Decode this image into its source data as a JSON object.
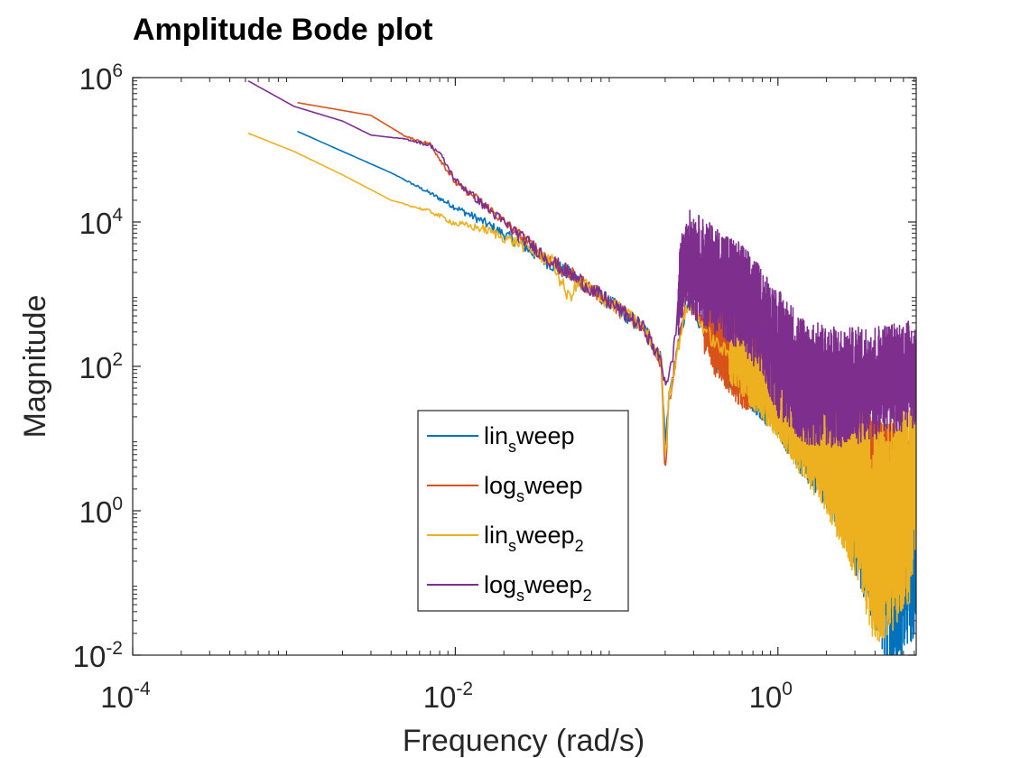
{
  "chart_data": {
    "type": "line",
    "title": "Amplitude Bode plot",
    "xlabel": "Frequency (rad/s)",
    "ylabel": "Magnitude",
    "xscale": "log",
    "yscale": "log",
    "xlim": [
      0.0001,
      7.2
    ],
    "ylim": [
      0.01,
      1000000
    ],
    "x_ticks": [
      {
        "value": 0.0001,
        "base": "10",
        "exp": "-4"
      },
      {
        "value": 0.01,
        "base": "10",
        "exp": "-2"
      },
      {
        "value": 1,
        "base": "10",
        "exp": "0"
      }
    ],
    "y_ticks": [
      {
        "value": 0.01,
        "base": "10",
        "exp": "-2"
      },
      {
        "value": 1,
        "base": "10",
        "exp": "0"
      },
      {
        "value": 100,
        "base": "10",
        "exp": "2"
      },
      {
        "value": 10000,
        "base": "10",
        "exp": "4"
      },
      {
        "value": 1000000,
        "base": "10",
        "exp": "6"
      }
    ],
    "legend_position": "center-bottom",
    "series": [
      {
        "name": "lin_sweep",
        "name_main": "lin",
        "name_sub": "s",
        "name_rest": "weep",
        "name_sub2": "",
        "color": "#0072BD",
        "noisy_from": 0.4,
        "points": [
          [
            0.00105,
            180000
          ],
          [
            0.002,
            95000
          ],
          [
            0.004,
            48000
          ],
          [
            0.007,
            25000
          ],
          [
            0.01,
            16000
          ],
          [
            0.015,
            10000
          ],
          [
            0.025,
            5000
          ],
          [
            0.04,
            2600
          ],
          [
            0.06,
            1500
          ],
          [
            0.1,
            650
          ],
          [
            0.15,
            330
          ],
          [
            0.19,
            120
          ],
          [
            0.2,
            8
          ],
          [
            0.21,
            35
          ],
          [
            0.25,
            300
          ],
          [
            0.28,
            800
          ],
          [
            0.32,
            450
          ],
          [
            0.4,
            210
          ],
          [
            0.6,
            90
          ],
          [
            1,
            28
          ],
          [
            1.5,
            9
          ],
          [
            2.5,
            3
          ],
          [
            3.2,
            1.2
          ],
          [
            4.2,
            0.4
          ],
          [
            5,
            0.15
          ],
          [
            6,
            0.3
          ],
          [
            7.2,
            0.6
          ]
        ],
        "spread": [
          [
            0.4,
            1.3
          ],
          [
            1,
            1.5
          ],
          [
            2,
            2.2
          ],
          [
            3,
            3.5
          ],
          [
            5,
            5
          ],
          [
            7.2,
            5
          ]
        ]
      },
      {
        "name": "log_sweep",
        "name_main": "log",
        "name_sub": "s",
        "name_rest": "weep",
        "name_sub2": "",
        "color": "#D95319",
        "noisy_from": 0.35,
        "points": [
          [
            0.00105,
            450000
          ],
          [
            0.003,
            300000
          ],
          [
            0.005,
            150000
          ],
          [
            0.007,
            120000
          ],
          [
            0.01,
            35000
          ],
          [
            0.015,
            18000
          ],
          [
            0.025,
            6500
          ],
          [
            0.04,
            2800
          ],
          [
            0.06,
            1500
          ],
          [
            0.1,
            650
          ],
          [
            0.15,
            320
          ],
          [
            0.19,
            110
          ],
          [
            0.2,
            3
          ],
          [
            0.21,
            30
          ],
          [
            0.25,
            350
          ],
          [
            0.28,
            1000
          ],
          [
            0.32,
            500
          ],
          [
            0.4,
            230
          ],
          [
            0.6,
            140
          ],
          [
            0.8,
            110
          ],
          [
            1,
            55
          ],
          [
            1.5,
            22
          ],
          [
            2.5,
            9
          ],
          [
            4,
            5
          ],
          [
            7.2,
            3
          ]
        ],
        "spread": [
          [
            0.35,
            1.3
          ],
          [
            0.6,
            2.5
          ],
          [
            1,
            2
          ],
          [
            7.2,
            2
          ]
        ]
      },
      {
        "name": "lin_sweep_2",
        "name_main": "lin",
        "name_sub": "s",
        "name_rest": "weep",
        "name_sub2": "2",
        "color": "#EDB120",
        "noisy_from": 0.5,
        "points": [
          [
            0.00052,
            170000
          ],
          [
            0.001,
            95000
          ],
          [
            0.002,
            45000
          ],
          [
            0.004,
            20000
          ],
          [
            0.007,
            14000
          ],
          [
            0.01,
            9500
          ],
          [
            0.015,
            8000
          ],
          [
            0.025,
            5000
          ],
          [
            0.04,
            2800
          ],
          [
            0.05,
            900
          ],
          [
            0.06,
            1500
          ],
          [
            0.1,
            650
          ],
          [
            0.15,
            330
          ],
          [
            0.19,
            120
          ],
          [
            0.2,
            5
          ],
          [
            0.21,
            35
          ],
          [
            0.25,
            300
          ],
          [
            0.28,
            800
          ],
          [
            0.32,
            450
          ],
          [
            0.4,
            220
          ],
          [
            0.6,
            100
          ],
          [
            1,
            30
          ],
          [
            1.5,
            10
          ],
          [
            2.5,
            3
          ],
          [
            3.2,
            1.5
          ],
          [
            4,
            0.4
          ],
          [
            5,
            0.6
          ],
          [
            6.5,
            1.5
          ],
          [
            7.2,
            8
          ]
        ],
        "spread": [
          [
            0.5,
            1.3
          ],
          [
            1,
            1.6
          ],
          [
            2,
            2.5
          ],
          [
            3,
            4
          ],
          [
            4,
            5
          ],
          [
            7.2,
            5
          ]
        ]
      },
      {
        "name": "log_sweep_2",
        "name_main": "log",
        "name_sub": "s",
        "name_rest": "weep",
        "name_sub2": "2",
        "color": "#7E2F8E",
        "noisy_from": 0.24,
        "points": [
          [
            0.00052,
            900000
          ],
          [
            0.001,
            400000
          ],
          [
            0.002,
            250000
          ],
          [
            0.003,
            160000
          ],
          [
            0.005,
            140000
          ],
          [
            0.007,
            115000
          ],
          [
            0.008,
            90000
          ],
          [
            0.01,
            38000
          ],
          [
            0.015,
            17000
          ],
          [
            0.025,
            6500
          ],
          [
            0.04,
            2800
          ],
          [
            0.06,
            1500
          ],
          [
            0.1,
            650
          ],
          [
            0.15,
            320
          ],
          [
            0.19,
            110
          ],
          [
            0.2,
            60
          ],
          [
            0.22,
            100
          ],
          [
            0.25,
            1500
          ],
          [
            0.27,
            3500
          ],
          [
            0.3,
            2500
          ],
          [
            0.4,
            1600
          ],
          [
            0.6,
            900
          ],
          [
            0.8,
            400
          ],
          [
            1,
            150
          ],
          [
            1.5,
            60
          ],
          [
            2.5,
            50
          ],
          [
            4,
            60
          ],
          [
            7.2,
            80
          ]
        ],
        "spread": [
          [
            0.24,
            1.8
          ],
          [
            0.3,
            2.5
          ],
          [
            0.8,
            2.5
          ],
          [
            1,
            3
          ],
          [
            7.2,
            2.5
          ]
        ]
      }
    ]
  }
}
